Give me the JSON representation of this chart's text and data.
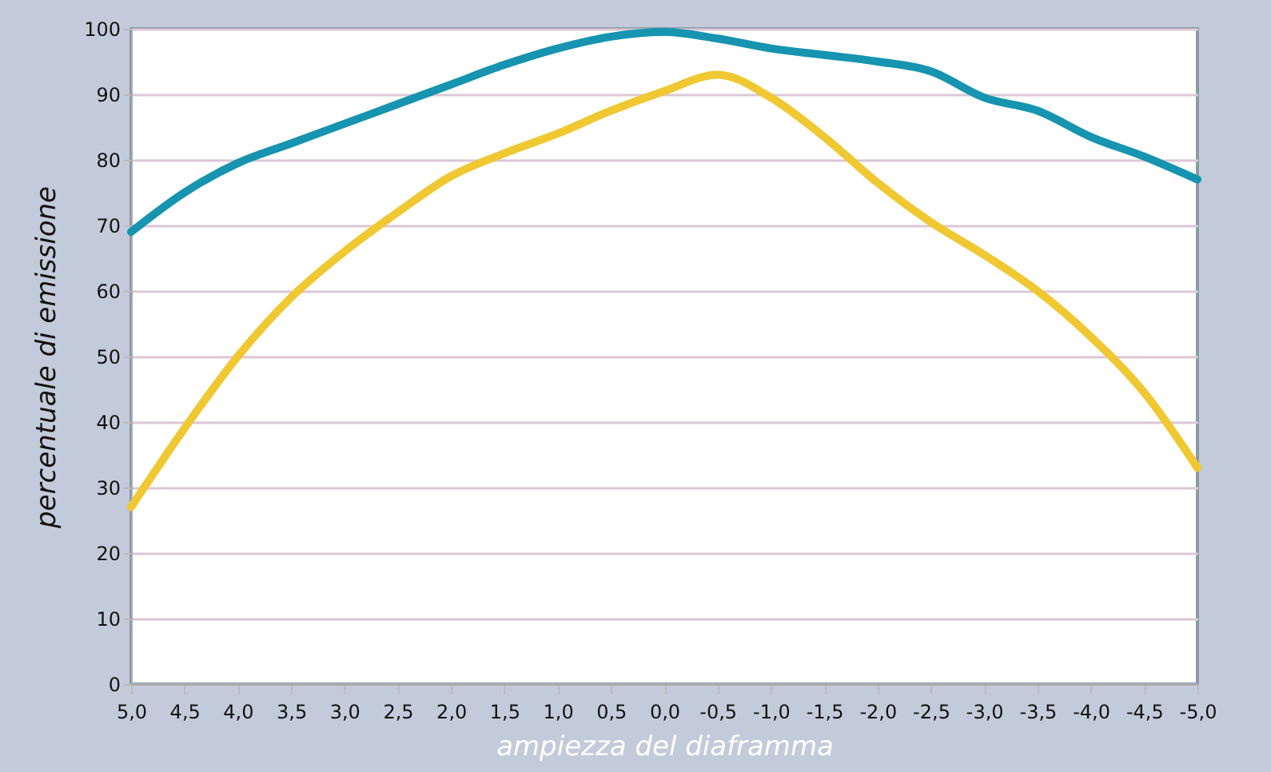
{
  "chart_data": {
    "type": "line",
    "xlabel": "ampiezza del diaframma",
    "ylabel": "percentuale di emissione",
    "x": [
      5.0,
      4.5,
      4.0,
      3.5,
      3.0,
      2.5,
      2.0,
      1.5,
      1.0,
      0.5,
      0.0,
      -0.5,
      -1.0,
      -1.5,
      -2.0,
      -2.5,
      -3.0,
      -3.5,
      -4.0,
      -4.5,
      -5.0
    ],
    "series": [
      {
        "color": "#1694b0",
        "values": [
          69,
          75,
          79.5,
          82.5,
          85.5,
          88.5,
          91.5,
          94.5,
          97,
          98.8,
          99.5,
          98.5,
          97,
          96,
          95,
          93.5,
          89.5,
          87.5,
          83.5,
          80.5,
          77
        ]
      },
      {
        "color": "#f0c832",
        "values": [
          27,
          39,
          50,
          59,
          66,
          72,
          77.5,
          81,
          84,
          87.5,
          90.5,
          93,
          89.5,
          83.5,
          76.5,
          70.5,
          65.5,
          60,
          53,
          44.5,
          33
        ]
      }
    ],
    "xlim": [
      5.0,
      -5.0
    ],
    "xticks": [
      {
        "value": 5.0,
        "label": "5,0"
      },
      {
        "value": 4.5,
        "label": "4,5"
      },
      {
        "value": 4.0,
        "label": "4,0"
      },
      {
        "value": 3.5,
        "label": "3,5"
      },
      {
        "value": 3.0,
        "label": "3,0"
      },
      {
        "value": 2.5,
        "label": "2,5"
      },
      {
        "value": 2.0,
        "label": "2,0"
      },
      {
        "value": 1.5,
        "label": "1,5"
      },
      {
        "value": 1.0,
        "label": "1,0"
      },
      {
        "value": 0.5,
        "label": "0,5"
      },
      {
        "value": 0.0,
        "label": "0,0"
      },
      {
        "value": -0.5,
        "label": "-0,5"
      },
      {
        "value": -1.0,
        "label": "-1,0"
      },
      {
        "value": -1.5,
        "label": "-1,5"
      },
      {
        "value": -2.0,
        "label": "-2,0"
      },
      {
        "value": -2.5,
        "label": "-2,5"
      },
      {
        "value": -3.0,
        "label": "-3,0"
      },
      {
        "value": -3.5,
        "label": "-3,5"
      },
      {
        "value": -4.0,
        "label": "-4,0"
      },
      {
        "value": -4.5,
        "label": "-4,5"
      },
      {
        "value": -5.0,
        "label": "-5,0"
      }
    ],
    "ylim": [
      0,
      100
    ],
    "yticks": [
      0,
      10,
      20,
      30,
      40,
      50,
      60,
      70,
      80,
      90,
      100
    ],
    "grid": "y",
    "marker": "none",
    "line_style": "solid"
  }
}
